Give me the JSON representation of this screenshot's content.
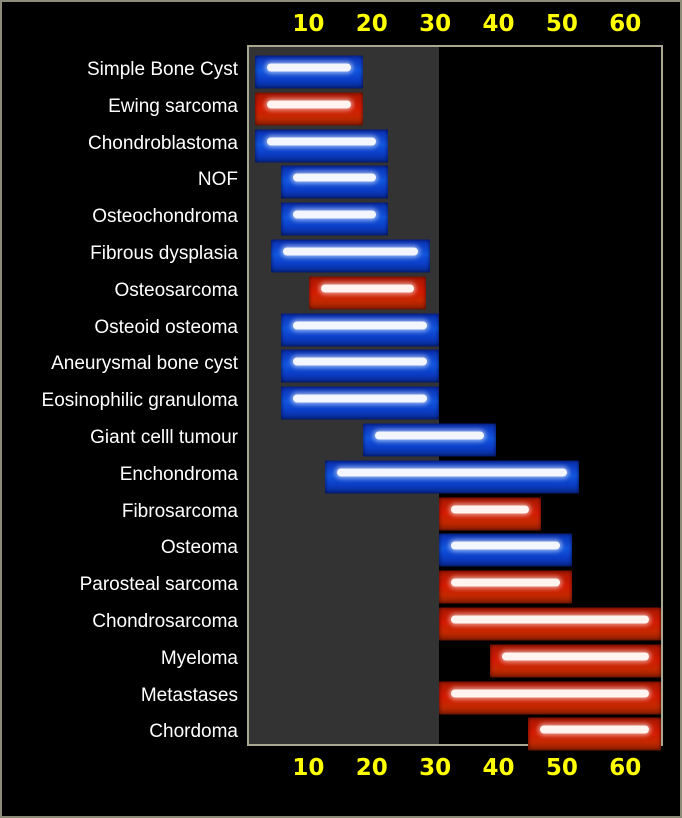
{
  "chart_data": {
    "type": "bar",
    "orientation": "horizontal-range",
    "title": "",
    "xlabel": "",
    "ylabel": "",
    "xlim": [
      0,
      65
    ],
    "x_ticks": [
      10,
      20,
      30,
      40,
      50,
      60
    ],
    "x_tick_position": "top-and-bottom",
    "grid": false,
    "shaded_region": {
      "from": 0,
      "to": 30,
      "color": "#333333"
    },
    "colors": {
      "blue": "#1155e0",
      "red": "#d41a00",
      "tick_label": "#ffff00",
      "background": "#000000"
    },
    "categories": [
      "Simple Bone Cyst",
      "Ewing sarcoma",
      "Chondroblastoma",
      "NOF",
      "Osteochondroma",
      "Fibrous dysplasia",
      "Osteosarcoma",
      "Osteoid osteoma",
      "Aneurysmal bone cyst",
      "Eosinophilic granuloma",
      "Giant celll tumour",
      "Enchondroma",
      "Fibrosarcoma",
      "Osteoma",
      "Parosteal sarcoma",
      "Chondrosarcoma",
      "Myeloma",
      "Metastases",
      "Chordoma"
    ],
    "ranges": [
      [
        1,
        18
      ],
      [
        1,
        18
      ],
      [
        1,
        22
      ],
      [
        5,
        22
      ],
      [
        5,
        22
      ],
      [
        3.5,
        28.5
      ],
      [
        9.5,
        28
      ],
      [
        5,
        30
      ],
      [
        5,
        30
      ],
      [
        5,
        30
      ],
      [
        18,
        39
      ],
      [
        12,
        52
      ],
      [
        30,
        46
      ],
      [
        30,
        51
      ],
      [
        30,
        51
      ],
      [
        30,
        65
      ],
      [
        38,
        65
      ],
      [
        30,
        65
      ],
      [
        44,
        65
      ]
    ],
    "bar_colors": [
      "blue",
      "red",
      "blue",
      "blue",
      "blue",
      "blue",
      "red",
      "blue",
      "blue",
      "blue",
      "blue",
      "blue",
      "red",
      "blue",
      "red",
      "red",
      "red",
      "red",
      "red"
    ]
  }
}
